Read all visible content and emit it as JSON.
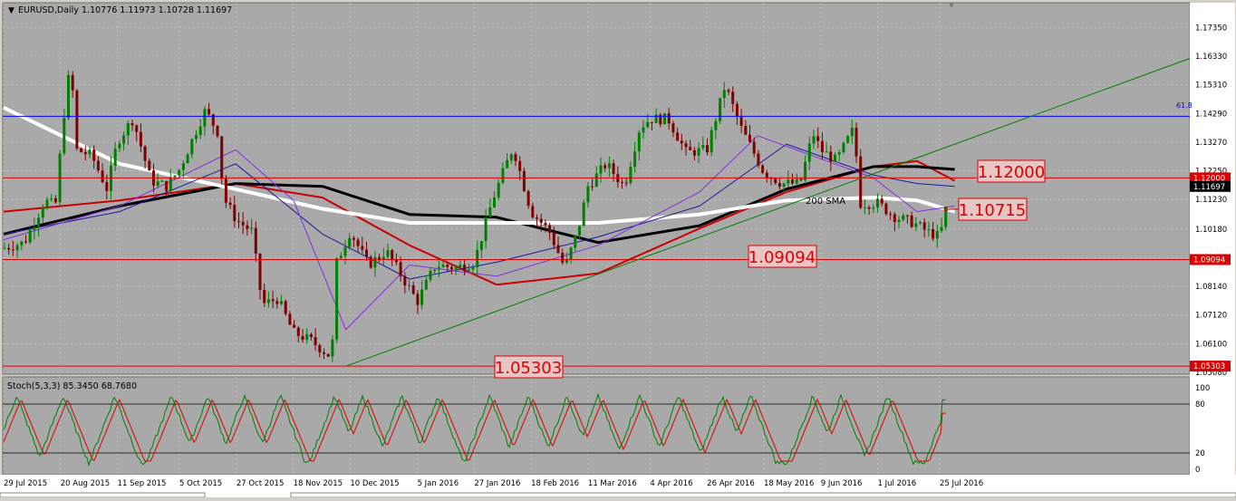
{
  "header": {
    "symbol_label": "EURUSD,Daily",
    "ohlc_label": "1.10776 1.11973 1.10728 1.11697"
  },
  "colors": {
    "background": "#a9a9a9",
    "grid": "#c8c8c8",
    "bull_candle": "#008000",
    "bear_candle": "#800000",
    "sma_fast_red": "#cc0000",
    "sma_slow_black": "#000000",
    "sma_200_white": "#ffffff",
    "ma_blue": "#1a1aa0",
    "ma_purple": "#8a2be2",
    "fib_line": "#0000ff",
    "trendline": "#008000",
    "level_line": "#dd0000",
    "stoch_main": "#008000",
    "stoch_signal": "#dd0000"
  },
  "chart_data": [
    {
      "type": "candlestick",
      "symbol": "EURUSD",
      "timeframe": "Daily",
      "ylim": [
        1.0508,
        1.1775
      ],
      "price_ticks": [
        "1.17350",
        "1.16330",
        "1.15310",
        "1.14290",
        "1.13270",
        "1.12250",
        "1.11230",
        "1.10180",
        "1.09160",
        "1.08140",
        "1.07120",
        "1.06100",
        "1.05080"
      ],
      "date_ticks": [
        "29 Jul 2015",
        "20 Aug 2015",
        "11 Sep 2015",
        "5 Oct 2015",
        "27 Oct 2015",
        "18 Nov 2015",
        "10 Dec 2015",
        "5 Jan 2016",
        "27 Jan 2016",
        "18 Feb 2016",
        "11 Mar 2016",
        "4 Apr 2016",
        "26 Apr 2016",
        "18 May 2016",
        "9 Jun 2016",
        "1 Jul 2016",
        "25 Jul 2016"
      ],
      "current_price_label": "1.11697",
      "horizontal_levels": [
        {
          "price": 1.12,
          "label": "1.12000",
          "axis_label": "1.12000"
        },
        {
          "price": 1.09094,
          "label": "1.09094",
          "axis_label": "1.09094"
        },
        {
          "price": 1.05303,
          "label": "1.05303",
          "axis_label": "1.05303"
        }
      ],
      "callout_label": "1.10715",
      "fib_level": {
        "price": 1.1419,
        "label": "61.8"
      },
      "sma_annotation": "200 SMA",
      "close_path": [
        [
          "29 Jul 2015",
          1.095
        ],
        [
          "6 Aug 2015",
          1.097
        ],
        [
          "14 Aug 2015",
          1.112
        ],
        [
          "18 Aug 2015",
          1.11
        ],
        [
          "21 Aug 2015",
          1.14
        ],
        [
          "24 Aug 2015",
          1.162
        ],
        [
          "26 Aug 2015",
          1.13
        ],
        [
          "1 Sep 2015",
          1.128
        ],
        [
          "7 Sep 2015",
          1.116
        ],
        [
          "11 Sep 2015",
          1.133
        ],
        [
          "17 Sep 2015",
          1.141
        ],
        [
          "24 Sep 2015",
          1.119
        ],
        [
          "30 Sep 2015",
          1.117
        ],
        [
          "5 Oct 2015",
          1.123
        ],
        [
          "12 Oct 2015",
          1.138
        ],
        [
          "15 Oct 2015",
          1.144
        ],
        [
          "20 Oct 2015",
          1.136
        ],
        [
          "22 Oct 2015",
          1.113
        ],
        [
          "27 Oct 2015",
          1.105
        ],
        [
          "2 Nov 2015",
          1.101
        ],
        [
          "6 Nov 2015",
          1.075
        ],
        [
          "12 Nov 2015",
          1.077
        ],
        [
          "18 Nov 2015",
          1.065
        ],
        [
          "25 Nov 2015",
          1.062
        ],
        [
          "3 Dec 2015",
          1.056
        ],
        [
          "4 Dec 2015",
          1.088
        ],
        [
          "10 Dec 2015",
          1.101
        ],
        [
          "17 Dec 2015",
          1.089
        ],
        [
          "24 Dec 2015",
          1.094
        ],
        [
          "5 Jan 2016",
          1.076
        ],
        [
          "12 Jan 2016",
          1.089
        ],
        [
          "20 Jan 2016",
          1.088
        ],
        [
          "27 Jan 2016",
          1.09
        ],
        [
          "3 Feb 2016",
          1.112
        ],
        [
          "11 Feb 2016",
          1.131
        ],
        [
          "18 Feb 2016",
          1.108
        ],
        [
          "25 Feb 2016",
          1.101
        ],
        [
          "2 Mar 2016",
          1.088
        ],
        [
          "7 Mar 2016",
          1.101
        ],
        [
          "11 Mar 2016",
          1.117
        ],
        [
          "18 Mar 2016",
          1.125
        ],
        [
          "25 Mar 2016",
          1.117
        ],
        [
          "31 Mar 2016",
          1.138
        ],
        [
          "4 Apr 2016",
          1.141
        ],
        [
          "11 Apr 2016",
          1.141
        ],
        [
          "18 Apr 2016",
          1.129
        ],
        [
          "26 Apr 2016",
          1.13
        ],
        [
          "3 May 2016",
          1.153
        ],
        [
          "9 May 2016",
          1.138
        ],
        [
          "13 May 2016",
          1.131
        ],
        [
          "18 May 2016",
          1.122
        ],
        [
          "25 May 2016",
          1.118
        ],
        [
          "1 Jun 2016",
          1.118
        ],
        [
          "6 Jun 2016",
          1.136
        ],
        [
          "9 Jun 2016",
          1.13
        ],
        [
          "15 Jun 2016",
          1.126
        ],
        [
          "22 Jun 2016",
          1.138
        ],
        [
          "24 Jun 2016",
          1.111
        ],
        [
          "1 Jul 2016",
          1.111
        ],
        [
          "8 Jul 2016",
          1.106
        ],
        [
          "15 Jul 2016",
          1.104
        ],
        [
          "20 Jul 2016",
          1.101
        ],
        [
          "25 Jul 2016",
          1.099
        ],
        [
          "27 Jul 2016",
          1.107
        ],
        [
          "29 Jul 2016",
          1.117
        ]
      ],
      "series": [
        {
          "name": "SMA red",
          "values": [
            [
              0,
              1.108
            ],
            [
              40,
              1.112
            ],
            [
              80,
              1.118
            ],
            [
              110,
              1.113
            ],
            [
              140,
              1.096
            ],
            [
              170,
              1.082
            ],
            [
              205,
              1.086
            ],
            [
              240,
              1.102
            ],
            [
              270,
              1.115
            ],
            [
              300,
              1.124
            ],
            [
              315,
              1.126
            ],
            [
              328,
              1.119
            ]
          ]
        },
        {
          "name": "SMA black",
          "values": [
            [
              0,
              1.1
            ],
            [
              40,
              1.11
            ],
            [
              80,
              1.118
            ],
            [
              110,
              1.117
            ],
            [
              140,
              1.107
            ],
            [
              170,
              1.106
            ],
            [
              205,
              1.097
            ],
            [
              240,
              1.103
            ],
            [
              270,
              1.116
            ],
            [
              300,
              1.124
            ],
            [
              315,
              1.124
            ],
            [
              328,
              1.123
            ]
          ]
        },
        {
          "name": "200 SMA",
          "values": [
            [
              0,
              1.145
            ],
            [
              40,
              1.125
            ],
            [
              80,
              1.116
            ],
            [
              110,
              1.109
            ],
            [
              140,
              1.104
            ],
            [
              170,
              1.104
            ],
            [
              205,
              1.104
            ],
            [
              240,
              1.107
            ],
            [
              270,
              1.112
            ],
            [
              300,
              1.113
            ],
            [
              315,
              1.112
            ],
            [
              328,
              1.108
            ]
          ]
        },
        {
          "name": "MA blue",
          "values": [
            [
              0,
              1.1
            ],
            [
              40,
              1.108
            ],
            [
              80,
              1.125
            ],
            [
              110,
              1.1
            ],
            [
              140,
              1.084
            ],
            [
              170,
              1.09
            ],
            [
              205,
              1.099
            ],
            [
              240,
              1.11
            ],
            [
              270,
              1.132
            ],
            [
              300,
              1.121
            ],
            [
              315,
              1.118
            ],
            [
              328,
              1.117
            ]
          ]
        },
        {
          "name": "MA purple",
          "values": [
            [
              0,
              1.098
            ],
            [
              40,
              1.11
            ],
            [
              80,
              1.13
            ],
            [
              100,
              1.112
            ],
            [
              118,
              1.066
            ],
            [
              140,
              1.089
            ],
            [
              170,
              1.085
            ],
            [
              205,
              1.096
            ],
            [
              240,
              1.115
            ],
            [
              260,
              1.135
            ],
            [
              300,
              1.12
            ],
            [
              315,
              1.108
            ],
            [
              328,
              1.11
            ]
          ]
        }
      ],
      "trendline": {
        "from": [
          118,
          1.053
        ],
        "to": [
          420,
          1.1625
        ]
      }
    },
    {
      "type": "line",
      "title": "Stoch(5,3,3) 85.3450 68.7680",
      "ylim": [
        0,
        100
      ],
      "levels": [
        20,
        80
      ],
      "axis_ticks": [
        "100",
        "80",
        "20",
        "0"
      ],
      "series": [
        {
          "name": "main",
          "last": 85.345
        },
        {
          "name": "signal",
          "last": 68.768
        }
      ],
      "peaks_x_dates": [
        "3 Aug 2015",
        "21 Aug 2015",
        "10 Sep 2015",
        "2 Oct 2015",
        "16 Oct 2015",
        "30 Oct 2015",
        "13 Nov 2015",
        "4 Dec 2015",
        "15 Dec 2015",
        "30 Dec 2015",
        "13 Jan 2016",
        "2 Feb 2016",
        "17 Feb 2016",
        "3 Mar 2016",
        "15 Mar 2016",
        "31 Mar 2016",
        "15 Apr 2016",
        "2 May 2016",
        "13 May 2016",
        "6 Jun 2016",
        "17 Jun 2016",
        "5 Jul 2016",
        "29 Jul 2016"
      ]
    }
  ]
}
